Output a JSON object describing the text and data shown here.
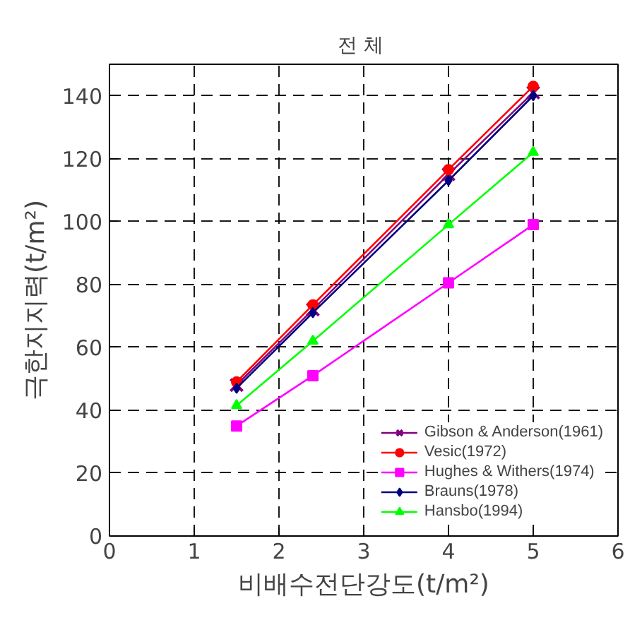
{
  "chart_data": {
    "type": "line",
    "title": "전  체",
    "xlabel": "비배수전단강도(t/m²)",
    "ylabel": "극한지지력(t/m²)",
    "x": [
      1.5,
      2.4,
      4,
      5
    ],
    "series": [
      {
        "name": "Gibson & Anderson(1961)",
        "color": "#800080",
        "marker": "cross",
        "values": [
          48,
          72,
          115,
          141
        ]
      },
      {
        "name": "Vesic(1972)",
        "color": "#ff0000",
        "marker": "circle",
        "values": [
          49,
          73.5,
          116.5,
          143
        ]
      },
      {
        "name": "Hughes & Withers(1974)",
        "color": "#ff00ff",
        "marker": "square",
        "values": [
          35,
          51,
          80.5,
          99
        ]
      },
      {
        "name": "Brauns(1978)",
        "color": "#000080",
        "marker": "diamond",
        "values": [
          47,
          71,
          113,
          140
        ]
      },
      {
        "name": "Hansbo(1994)",
        "color": "#00ff00",
        "marker": "triangle",
        "values": [
          41.5,
          62,
          99,
          122
        ]
      }
    ],
    "xlim": [
      0,
      6
    ],
    "ylim": [
      0,
      150
    ],
    "xticks": [
      0,
      1,
      2,
      3,
      4,
      5,
      6
    ],
    "yticks": [
      0,
      20,
      40,
      60,
      80,
      100,
      120,
      140
    ],
    "grid": true,
    "legend": "bottom right",
    "line_style": "solid"
  }
}
